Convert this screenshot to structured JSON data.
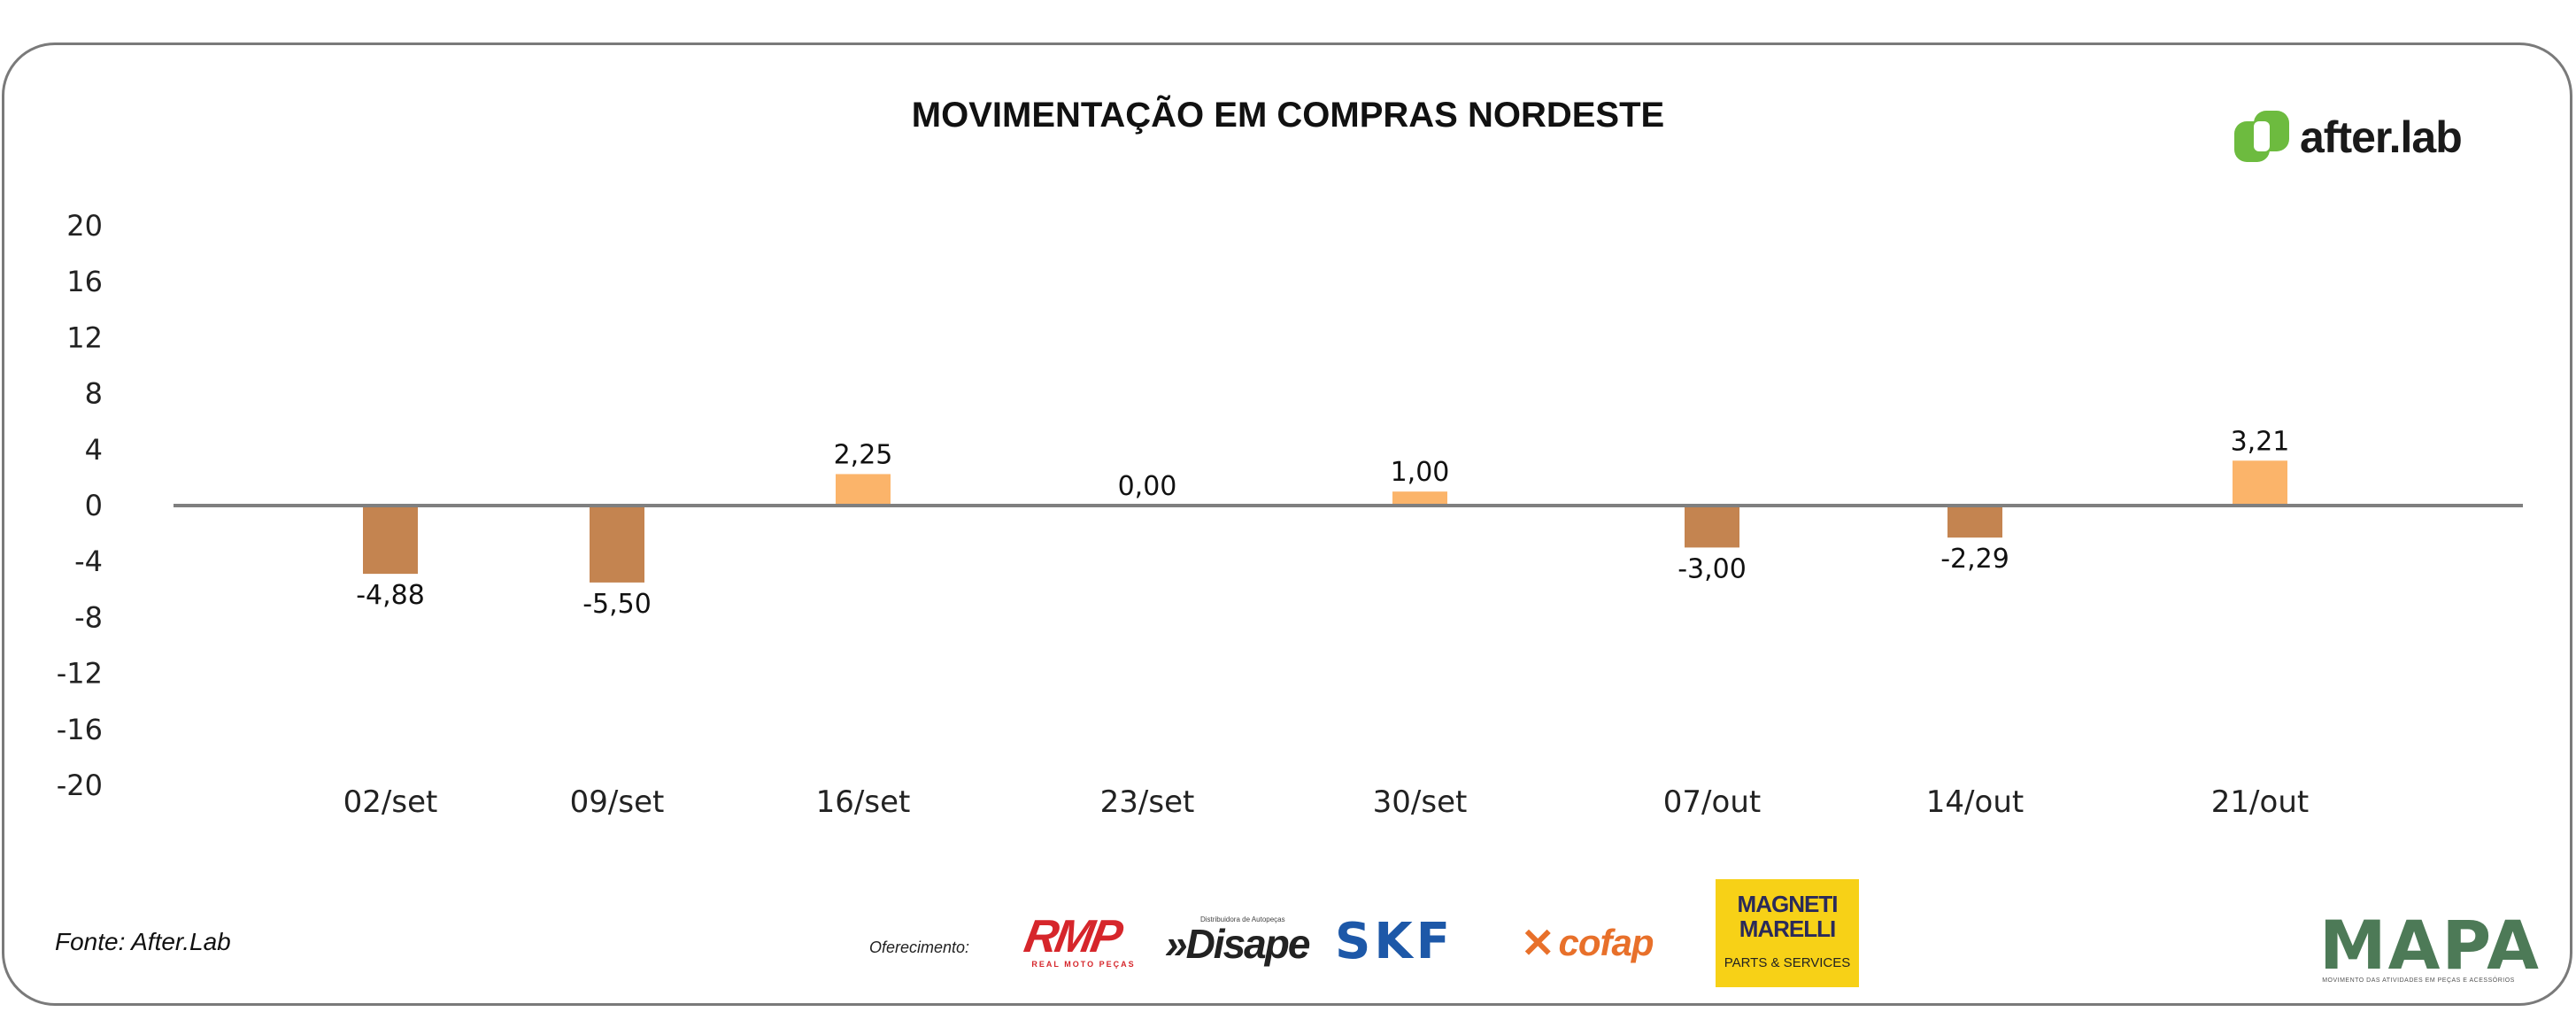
{
  "chart_data": {
    "type": "bar",
    "title": "MOVIMENTAÇÃO EM COMPRAS NORDESTE",
    "categories": [
      "02/set",
      "09/set",
      "16/set",
      "23/set",
      "30/set",
      "07/out",
      "14/out",
      "21/out"
    ],
    "values": [
      -4.88,
      -5.5,
      2.25,
      0.0,
      1.0,
      -3.0,
      -2.29,
      3.21
    ],
    "data_labels": [
      "-4,88",
      "-5,50",
      "2,25",
      "0,00",
      "1,00",
      "-3,00",
      "-2,29",
      "3,21"
    ],
    "ylim": [
      -20,
      20
    ],
    "yticks": [
      20,
      16,
      12,
      8,
      4,
      0,
      -4,
      -8,
      -12,
      -16,
      -20
    ],
    "grid": false,
    "colors": {
      "negative": "#c48450",
      "positive": "#fbb46a",
      "axis": "#7f7f7f"
    }
  },
  "branding": {
    "afterlab_text": "after.lab",
    "source": "Fonte: After.Lab",
    "sponsor_label": "Oferecimento:",
    "sponsors": {
      "rmp": "RMP",
      "rmp_sub": "REAL MOTO PEÇAS",
      "disape_small": "Distribuidora de Autopeças",
      "disape": "»Disape",
      "skf": "SKF",
      "cofap": "cofap",
      "magneti": "MAGNETI MARELLI",
      "magneti_sub": "PARTS & SERVICES",
      "mapa": "MAPA",
      "mapa_sub": "MOVIMENTO DAS ATIVIDADES EM PEÇAS E ACESSÓRIOS"
    }
  }
}
